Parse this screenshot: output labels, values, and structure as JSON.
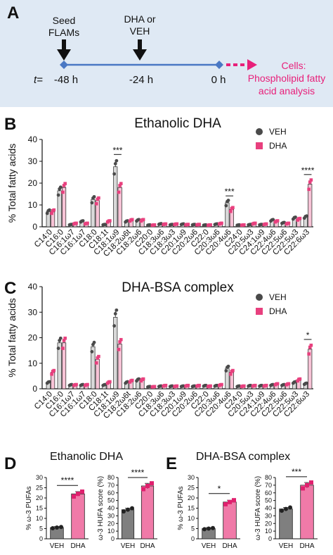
{
  "panel_letters": {
    "A": "A",
    "B": "B",
    "C": "C",
    "D": "D",
    "E": "E"
  },
  "panelA": {
    "events": [
      {
        "label_line1": "Seed",
        "label_line2": "FLAMs",
        "time": "-48 h"
      },
      {
        "label_line1": "DHA or",
        "label_line2": "VEH",
        "time": "-24 h"
      },
      {
        "label_line1": "",
        "label_line2": "",
        "time": "0 h"
      }
    ],
    "t_label": "t=",
    "outcome_line1": "Cells:",
    "outcome_line2": "Phospholipid fatty",
    "outcome_line3": "acid analysis",
    "colors": {
      "panel_bg": "#dfe9f4",
      "timeline": "#4a78c4",
      "outcome": "#e8207a",
      "arrow": "#111111"
    }
  },
  "colors": {
    "veh": "#4a4a4a",
    "dha": "#e8407e",
    "dha_light": "#f07aa8",
    "veh_bar_outline": "#222222"
  },
  "chart_data": [
    {
      "id": "B",
      "type": "bar",
      "title": "Ethanolic DHA",
      "ylabel": "%  Total fatty acids",
      "ylim": [
        0,
        40
      ],
      "yticks": [
        0,
        10,
        20,
        30,
        40
      ],
      "legend": [
        "VEH",
        "DHA"
      ],
      "legend_position": "top-right",
      "categories": [
        "C14:0",
        "C16:0",
        "C16:1ω7",
        "C16:1ω7",
        "C18:0",
        "C18:1t",
        "C18:1ω9",
        "C18:2ω6t",
        "C18:2ω6",
        "C20:0",
        "C18:3ω6",
        "C18:3ω3",
        "C20:1ω9",
        "C20:2ω6",
        "C22:0",
        "C20:3ω6",
        "C20:4ω6",
        "C24:0",
        "C20:5ω3",
        "C24:1ω9",
        "C22:4ω6",
        "C22:5ω6",
        "C22:5ω3",
        "C22:6ω3"
      ],
      "series": [
        {
          "name": "VEH",
          "values": [
            7.0,
            16.5,
            1.0,
            2.5,
            12.5,
            1.0,
            27.5,
            2.5,
            3.0,
            0.8,
            1.3,
            1.0,
            1.2,
            1.0,
            0.8,
            1.2,
            11.0,
            0.8,
            1.0,
            1.0,
            3.0,
            1.8,
            4.0,
            4.5
          ]
        },
        {
          "name": "DHA",
          "values": [
            7.0,
            18.0,
            1.5,
            1.5,
            12.0,
            2.5,
            18.0,
            3.0,
            3.0,
            0.8,
            1.2,
            1.2,
            1.0,
            1.0,
            0.8,
            1.5,
            8.0,
            0.8,
            1.5,
            1.2,
            2.5,
            1.5,
            3.5,
            19.5
          ]
        }
      ],
      "significance": [
        {
          "category": "C18:1ω9",
          "label": "***"
        },
        {
          "category": "C20:4ω6",
          "label": "***"
        },
        {
          "category": "C22:6ω3",
          "label": "****"
        }
      ]
    },
    {
      "id": "C",
      "type": "bar",
      "title": "DHA-BSA complex",
      "ylabel": "%  Total fatty acids",
      "ylim": [
        0,
        40
      ],
      "yticks": [
        0,
        10,
        20,
        30,
        40
      ],
      "legend": [
        "VEH",
        "DHA"
      ],
      "legend_position": "top-right",
      "categories": [
        "C14:0",
        "C16:0",
        "C16:1ω7",
        "C16:1ω7",
        "C18:0",
        "C18:1t",
        "C18:1ω9",
        "C18:2ω6t",
        "C18:2ω6",
        "C20:0",
        "C18:3ω6",
        "C18:3ω3",
        "C20:1ω9",
        "C20:2ω6",
        "C22:0",
        "C20:3ω6",
        "C20:4ω6",
        "C24:0",
        "C20:5ω3",
        "C24:1ω9",
        "C22:4ω6",
        "C22:5ω6",
        "C22:5ω3",
        "C22:6ω3"
      ],
      "series": [
        {
          "name": "VEH",
          "values": [
            2.5,
            18.0,
            1.5,
            1.5,
            16.5,
            1.5,
            28.0,
            2.5,
            3.5,
            0.8,
            1.0,
            1.0,
            1.0,
            1.0,
            1.2,
            1.2,
            8.0,
            1.0,
            1.2,
            1.2,
            1.5,
            1.5,
            2.5,
            2.0
          ]
        },
        {
          "name": "DHA",
          "values": [
            6.5,
            18.0,
            1.5,
            1.5,
            11.5,
            2.5,
            17.5,
            3.0,
            3.5,
            0.8,
            1.2,
            1.0,
            1.2,
            1.2,
            1.0,
            1.5,
            6.5,
            1.0,
            1.2,
            1.2,
            1.8,
            1.8,
            3.5,
            15.5
          ]
        }
      ],
      "significance": [
        {
          "category": "C22:6ω3",
          "label": "*"
        }
      ]
    },
    {
      "id": "D1",
      "type": "bar",
      "group_title": "Ethanolic DHA",
      "ylabel": "% ω-3 PUFAs",
      "ylim": [
        0,
        30
      ],
      "yticks": [
        0,
        5,
        10,
        15,
        20,
        25,
        30
      ],
      "categories": [
        "VEH",
        "DHA"
      ],
      "values": [
        5.5,
        22.0
      ],
      "significance": "****"
    },
    {
      "id": "D2",
      "type": "bar",
      "ylabel": "ω-3 HUFA score (%)",
      "ylim": [
        0,
        80
      ],
      "yticks": [
        0,
        10,
        20,
        30,
        40,
        50,
        60,
        70,
        80
      ],
      "categories": [
        "VEH",
        "DHA"
      ],
      "values": [
        38,
        69
      ],
      "significance": "****"
    },
    {
      "id": "E1",
      "type": "bar",
      "group_title": "DHA-BSA complex",
      "ylabel": "% ω-3 PUFAs",
      "ylim": [
        0,
        30
      ],
      "yticks": [
        0,
        5,
        10,
        15,
        20,
        25,
        30
      ],
      "categories": [
        "VEH",
        "DHA"
      ],
      "values": [
        5.0,
        18.0
      ],
      "significance": "*"
    },
    {
      "id": "E2",
      "type": "bar",
      "ylabel": "ω-3 HUFA score (%)",
      "ylim": [
        0,
        80
      ],
      "yticks": [
        0,
        10,
        20,
        30,
        40,
        50,
        60,
        70,
        80
      ],
      "categories": [
        "VEH",
        "DHA"
      ],
      "values": [
        39,
        70
      ],
      "significance": "***"
    }
  ]
}
